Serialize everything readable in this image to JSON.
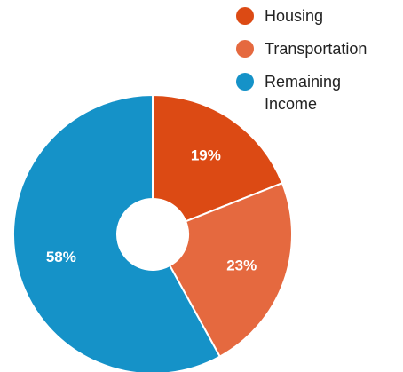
{
  "chart_data": {
    "type": "pie",
    "categories": [
      "Housing",
      "Transportation",
      "Remaining Income"
    ],
    "values": [
      19,
      23,
      58
    ],
    "value_labels": [
      "19%",
      "23%",
      "58%"
    ],
    "colors": [
      "#dc4a14",
      "#e5693f",
      "#1592c8"
    ],
    "donut": true
  }
}
